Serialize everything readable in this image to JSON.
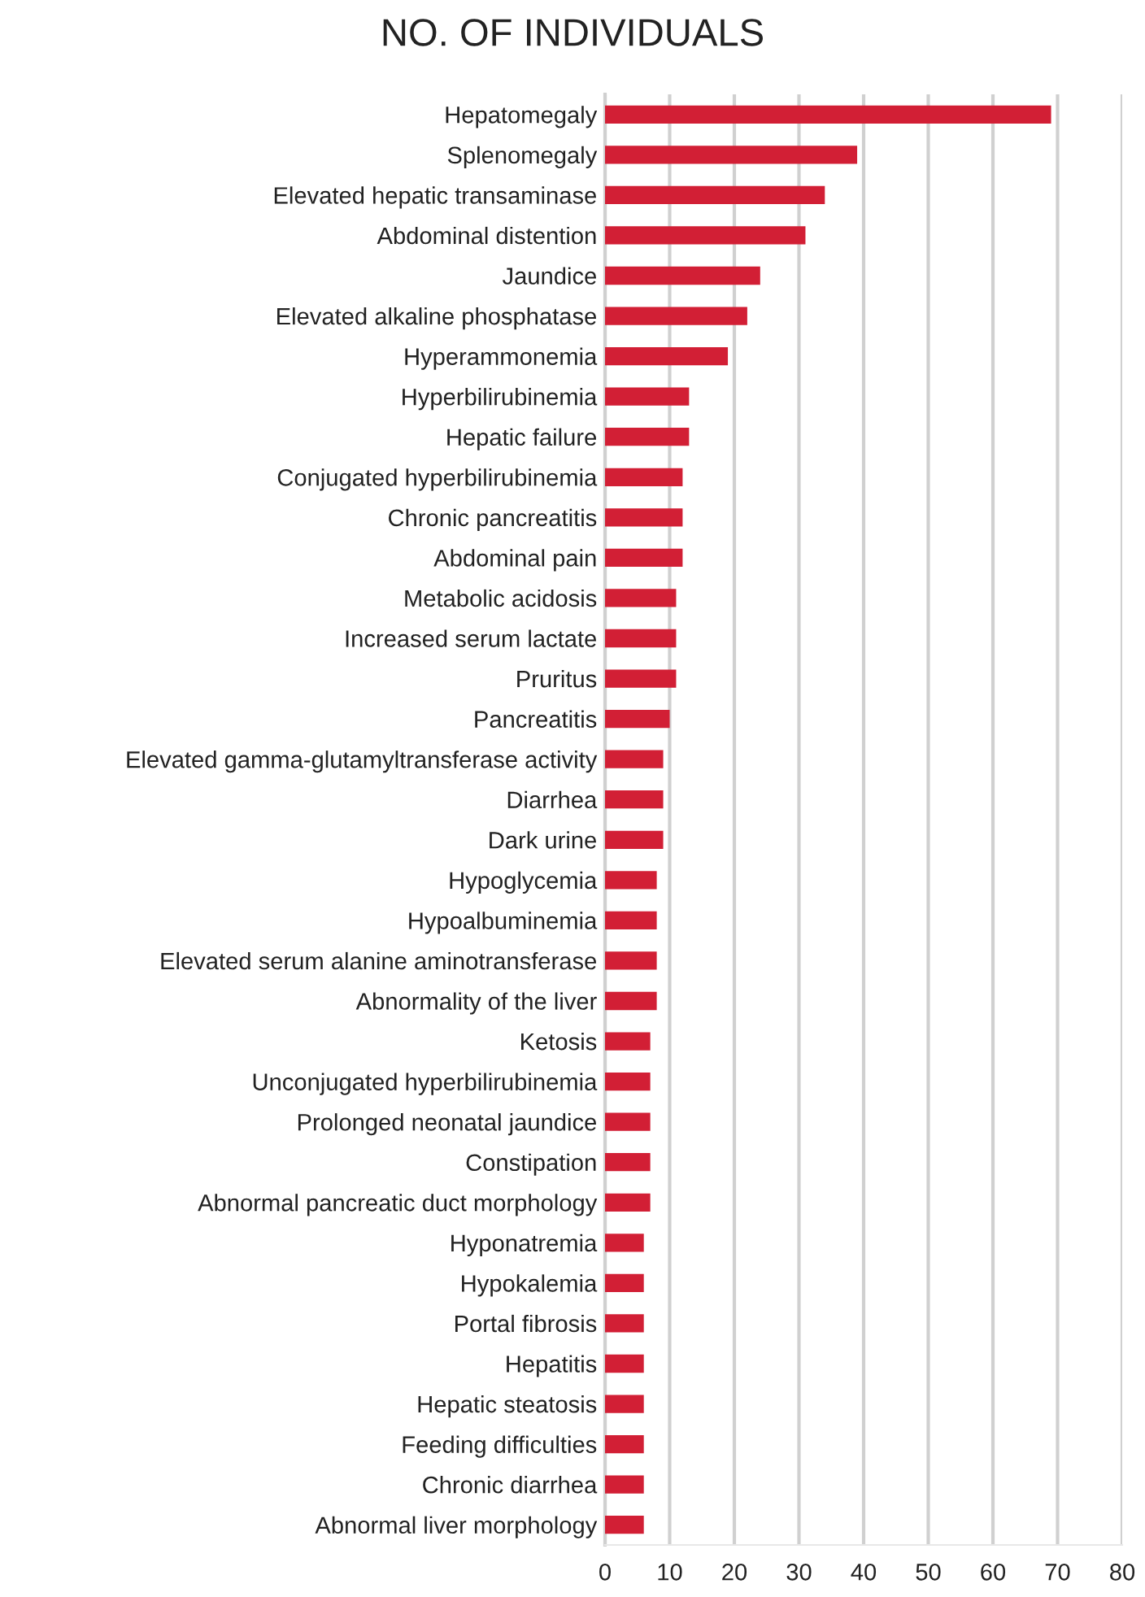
{
  "chart_data": {
    "type": "bar",
    "orientation": "horizontal",
    "title": "NO. OF INDIVIDUALS",
    "categories": [
      "Hepatomegaly",
      "Splenomegaly",
      "Elevated hepatic transaminase",
      "Abdominal distention",
      "Jaundice",
      "Elevated alkaline phosphatase",
      "Hyperammonemia",
      "Hyperbilirubinemia",
      "Hepatic failure",
      "Conjugated hyperbilirubinemia",
      "Chronic pancreatitis",
      "Abdominal pain",
      "Metabolic acidosis",
      "Increased serum lactate",
      "Pruritus",
      "Pancreatitis",
      "Elevated gamma-glutamyltransferase activity",
      "Diarrhea",
      "Dark urine",
      "Hypoglycemia",
      "Hypoalbuminemia",
      "Elevated serum alanine aminotransferase",
      "Abnormality of the liver",
      "Ketosis",
      "Unconjugated hyperbilirubinemia",
      "Prolonged neonatal jaundice",
      "Constipation",
      "Abnormal pancreatic duct morphology",
      "Hyponatremia",
      "Hypokalemia",
      "Portal fibrosis",
      "Hepatitis",
      "Hepatic steatosis",
      "Feeding difficulties",
      "Chronic diarrhea",
      "Abnormal liver morphology"
    ],
    "values": [
      69,
      39,
      34,
      31,
      24,
      22,
      19,
      13,
      13,
      12,
      12,
      12,
      11,
      11,
      11,
      10,
      9,
      9,
      9,
      8,
      8,
      8,
      8,
      7,
      7,
      7,
      7,
      7,
      6,
      6,
      6,
      6,
      6,
      6,
      6,
      6
    ],
    "color": "#d21f35",
    "xlim": [
      0,
      80
    ],
    "xticks": [
      0,
      10,
      20,
      30,
      40,
      50,
      60,
      70,
      80
    ],
    "grid": "x"
  }
}
